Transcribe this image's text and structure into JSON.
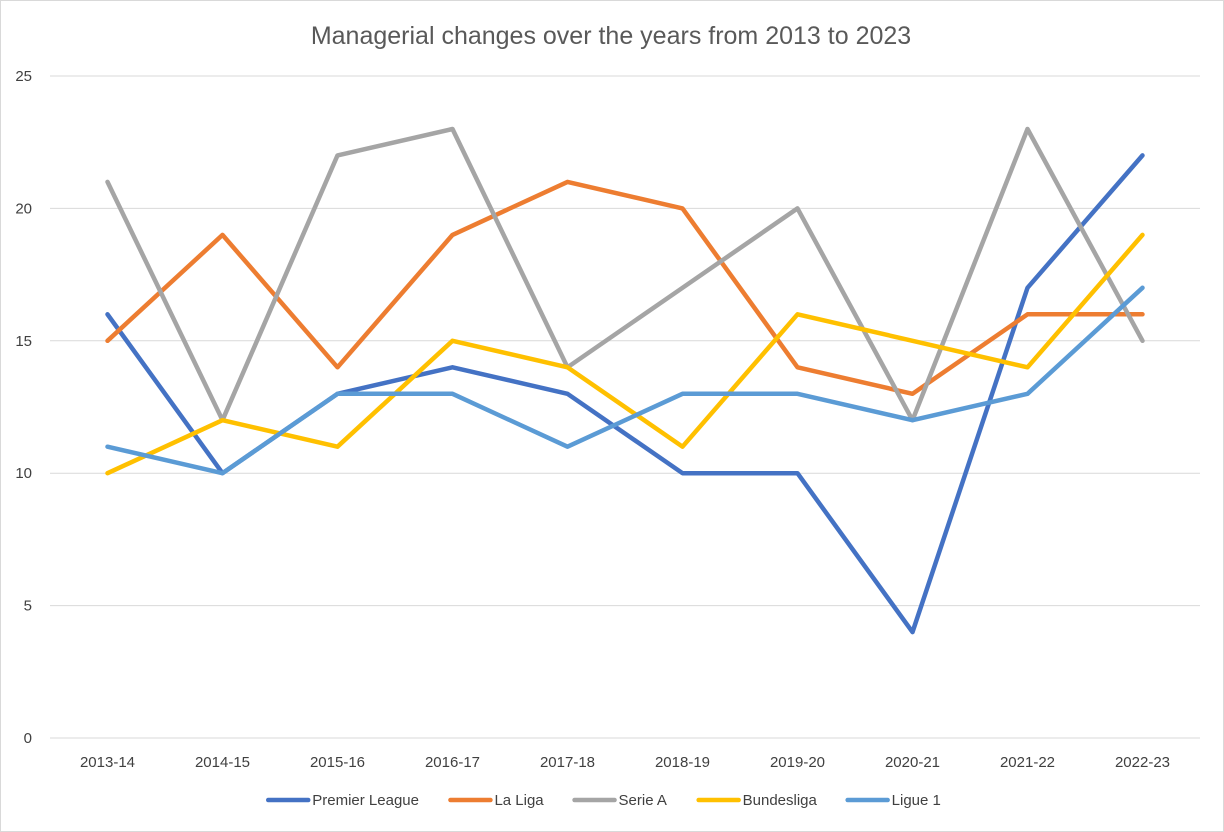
{
  "chart_data": {
    "type": "line",
    "title": "Managerial changes over the years from 2013 to 2023",
    "xlabel": "",
    "ylabel": "",
    "categories": [
      "2013-14",
      "2014-15",
      "2015-16",
      "2016-17",
      "2017-18",
      "2018-19",
      "2019-20",
      "2020-21",
      "2021-22",
      "2022-23"
    ],
    "ylim": [
      0,
      25
    ],
    "yticks": [
      "0",
      "5",
      "10",
      "15",
      "20",
      "25"
    ],
    "grid": true,
    "legend_position": "bottom",
    "series": [
      {
        "name": "Premier League",
        "color": "#4472C4",
        "values": [
          16,
          10,
          13,
          14,
          13,
          10,
          10,
          4,
          17,
          22
        ]
      },
      {
        "name": "La Liga",
        "color": "#ED7D31",
        "values": [
          15,
          19,
          14,
          19,
          21,
          20,
          14,
          13,
          16,
          16
        ]
      },
      {
        "name": "Serie A",
        "color": "#A5A5A5",
        "values": [
          21,
          12,
          22,
          23,
          14,
          17,
          20,
          12,
          23,
          15
        ]
      },
      {
        "name": "Bundesliga",
        "color": "#FFC000",
        "values": [
          10,
          12,
          11,
          15,
          14,
          11,
          16,
          15,
          14,
          19
        ]
      },
      {
        "name": "Ligue 1",
        "color": "#5B9BD5",
        "values": [
          11,
          10,
          13,
          13,
          11,
          13,
          13,
          12,
          13,
          17
        ]
      }
    ]
  }
}
